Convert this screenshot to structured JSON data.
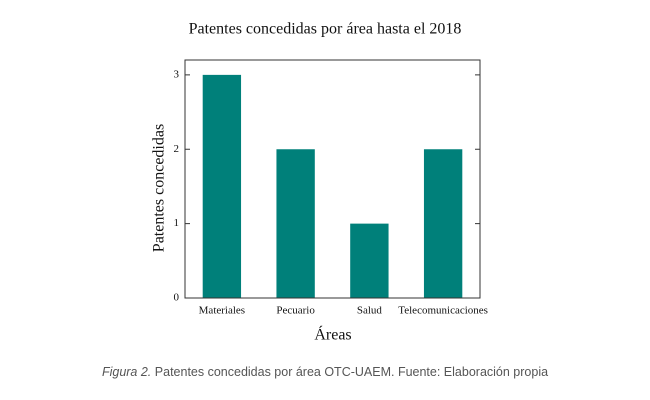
{
  "chart_data": {
    "type": "bar",
    "title": "Patentes concedidas por área hasta el 2018",
    "x_label": "Áreas",
    "y_label": "Patentes concedidas",
    "categories": [
      "Materiales",
      "Pecuario",
      "Salud",
      "Telecomunicaciones"
    ],
    "values": [
      3,
      2,
      1,
      2
    ],
    "color": "#00807a",
    "ylim": [
      0,
      3.2
    ],
    "yticks": [
      0,
      1,
      2,
      3
    ],
    "grid": false
  },
  "caption": {
    "label": "Figura 2.",
    "text": "Patentes concedidas por área OTC-UAEM. Fuente: Elaboración propia"
  }
}
